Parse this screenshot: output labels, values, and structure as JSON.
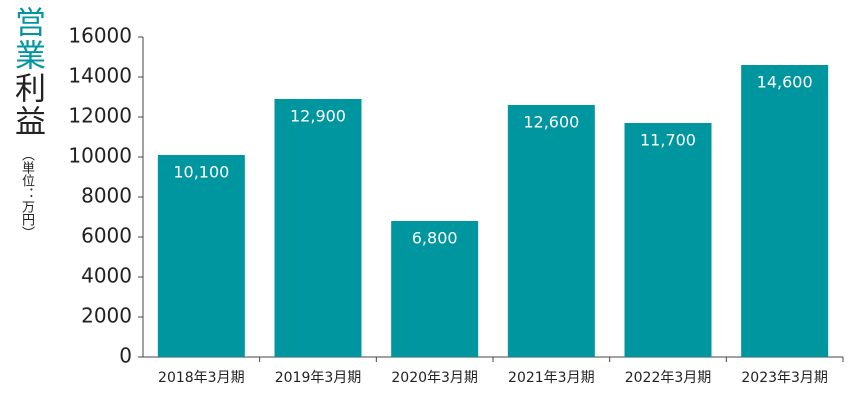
{
  "chart_data": {
    "type": "bar",
    "ylabel_highlight": "営業",
    "ylabel_rest": "利益",
    "unit": "（単位：万円）",
    "categories": [
      "2018年3月期",
      "2019年3月期",
      "2020年3月期",
      "2021年3月期",
      "2022年3月期",
      "2023年3月期"
    ],
    "values": [
      10100,
      12900,
      6800,
      12600,
      11700,
      14600
    ],
    "value_labels": [
      "10,100",
      "12,900",
      "6,800",
      "12,600",
      "11,700",
      "14,600"
    ],
    "color": "#0096a0",
    "ylim": [
      0,
      16000
    ],
    "yticks": [
      0,
      2000,
      4000,
      6000,
      8000,
      10000,
      12000,
      14000,
      16000
    ]
  }
}
